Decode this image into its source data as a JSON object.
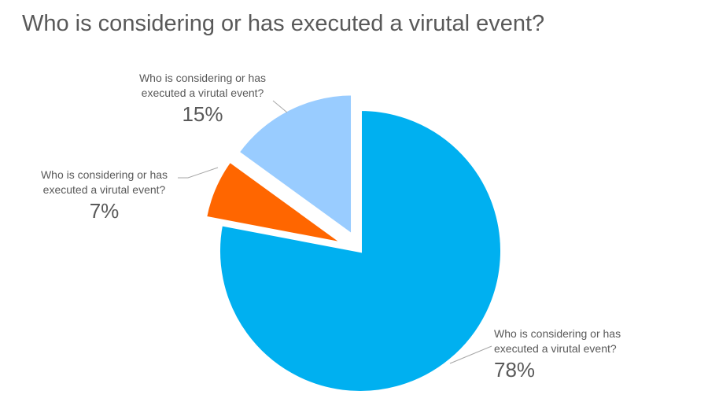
{
  "chart_data": {
    "type": "pie",
    "title": "Who is considering or has executed a virutal event?",
    "slices": [
      {
        "label": "Who is considering or has executed a virutal event?",
        "value": 78,
        "value_label": "78%",
        "color": "#00B0F0",
        "exploded": false
      },
      {
        "label": "Who is considering or has executed a virutal event?",
        "value": 7,
        "value_label": "7%",
        "color": "#FF6600",
        "exploded": true
      },
      {
        "label": "Who is considering or has executed a virutal event?",
        "value": 15,
        "value_label": "15%",
        "color": "#99CCFF",
        "exploded": true
      }
    ],
    "start_angle_deg": 0,
    "direction": "clockwise",
    "legend": "none"
  }
}
